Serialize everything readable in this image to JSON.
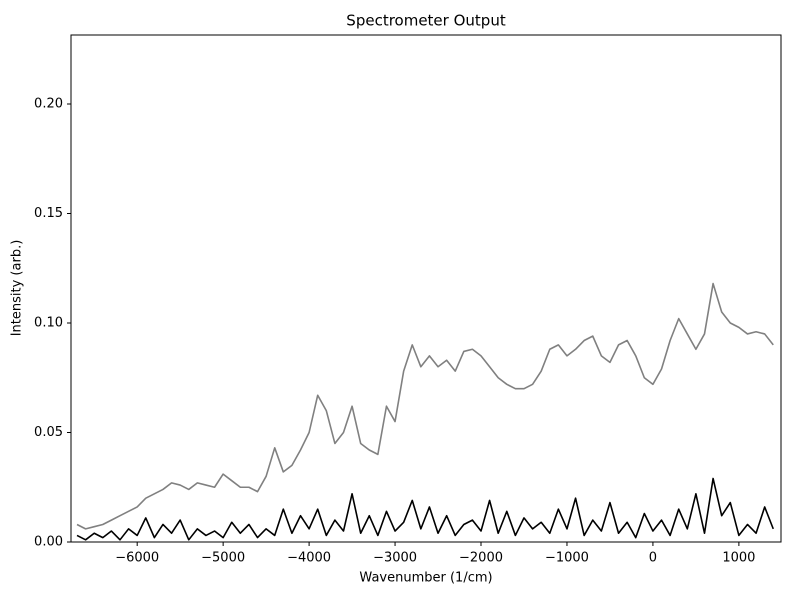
{
  "chart_data": {
    "type": "line",
    "title": "Spectrometer Output",
    "x_label": "Wavenumber (1/cm)",
    "y_label": "Intensity (arb.)",
    "x": [
      -6700,
      -6600,
      -6500,
      -6400,
      -6300,
      -6200,
      -6100,
      -6000,
      -5900,
      -5800,
      -5700,
      -5600,
      -5500,
      -5400,
      -5300,
      -5200,
      -5100,
      -5000,
      -4900,
      -4800,
      -4700,
      -4600,
      -4500,
      -4400,
      -4300,
      -4200,
      -4100,
      -4000,
      -3900,
      -3800,
      -3700,
      -3600,
      -3500,
      -3400,
      -3300,
      -3200,
      -3100,
      -3000,
      -2900,
      -2800,
      -2700,
      -2600,
      -2500,
      -2400,
      -2300,
      -2200,
      -2100,
      -2000,
      -1900,
      -1800,
      -1700,
      -1600,
      -1500,
      -1400,
      -1300,
      -1200,
      -1100,
      -1000,
      -900,
      -800,
      -700,
      -600,
      -500,
      -400,
      -300,
      -200,
      -100,
      0,
      100,
      200,
      300,
      400,
      500,
      600,
      700,
      800,
      900,
      1000,
      1100,
      1200,
      1300,
      1400
    ],
    "series": [
      {
        "color": "#808080",
        "values": [
          0.008,
          0.006,
          0.007,
          0.008,
          0.01,
          0.012,
          0.014,
          0.016,
          0.02,
          0.022,
          0.024,
          0.027,
          0.026,
          0.024,
          0.027,
          0.026,
          0.025,
          0.031,
          0.028,
          0.025,
          0.025,
          0.023,
          0.03,
          0.043,
          0.032,
          0.035,
          0.042,
          0.05,
          0.067,
          0.06,
          0.045,
          0.05,
          0.062,
          0.045,
          0.042,
          0.04,
          0.062,
          0.055,
          0.078,
          0.09,
          0.08,
          0.085,
          0.08,
          0.083,
          0.078,
          0.087,
          0.088,
          0.085,
          0.08,
          0.075,
          0.072,
          0.07,
          0.07,
          0.072,
          0.078,
          0.088,
          0.09,
          0.085,
          0.088,
          0.092,
          0.094,
          0.085,
          0.082,
          0.09,
          0.092,
          0.085,
          0.075,
          0.072,
          0.079,
          0.092,
          0.102,
          0.095,
          0.088,
          0.095,
          0.118,
          0.105,
          0.1,
          0.098,
          0.095,
          0.096,
          0.095,
          0.09
        ]
      },
      {
        "color": "#000000",
        "values": [
          0.003,
          0.001,
          0.004,
          0.002,
          0.005,
          0.001,
          0.006,
          0.003,
          0.011,
          0.002,
          0.008,
          0.004,
          0.01,
          0.001,
          0.006,
          0.003,
          0.005,
          0.002,
          0.009,
          0.004,
          0.008,
          0.002,
          0.006,
          0.003,
          0.015,
          0.004,
          0.012,
          0.006,
          0.015,
          0.003,
          0.01,
          0.005,
          0.022,
          0.004,
          0.012,
          0.003,
          0.014,
          0.005,
          0.009,
          0.019,
          0.006,
          0.016,
          0.004,
          0.012,
          0.003,
          0.008,
          0.01,
          0.005,
          0.019,
          0.004,
          0.014,
          0.003,
          0.011,
          0.006,
          0.009,
          0.004,
          0.015,
          0.006,
          0.02,
          0.003,
          0.01,
          0.005,
          0.018,
          0.004,
          0.009,
          0.002,
          0.013,
          0.005,
          0.01,
          0.003,
          0.015,
          0.006,
          0.022,
          0.004,
          0.029,
          0.012,
          0.018,
          0.003,
          0.008,
          0.004,
          0.016,
          0.006
        ]
      }
    ],
    "xlim": [
      -6770,
      1490
    ],
    "ylim": [
      0,
      0.2315
    ],
    "xticks": [
      {
        "value": -6000,
        "label": "−6000"
      },
      {
        "value": -5000,
        "label": "−5000"
      },
      {
        "value": -4000,
        "label": "−4000"
      },
      {
        "value": -3000,
        "label": "−3000"
      },
      {
        "value": -2000,
        "label": "−2000"
      },
      {
        "value": -1000,
        "label": "−1000"
      },
      0,
      1000
    ],
    "yticks": [
      {
        "value": 0,
        "label": "0.00"
      },
      {
        "value": 0.05,
        "label": "0.05"
      },
      {
        "value": 0.1,
        "label": "0.10"
      },
      {
        "value": 0.15,
        "label": "0.15"
      },
      {
        "value": 0.2,
        "label": "0.20"
      }
    ],
    "grid": false
  }
}
